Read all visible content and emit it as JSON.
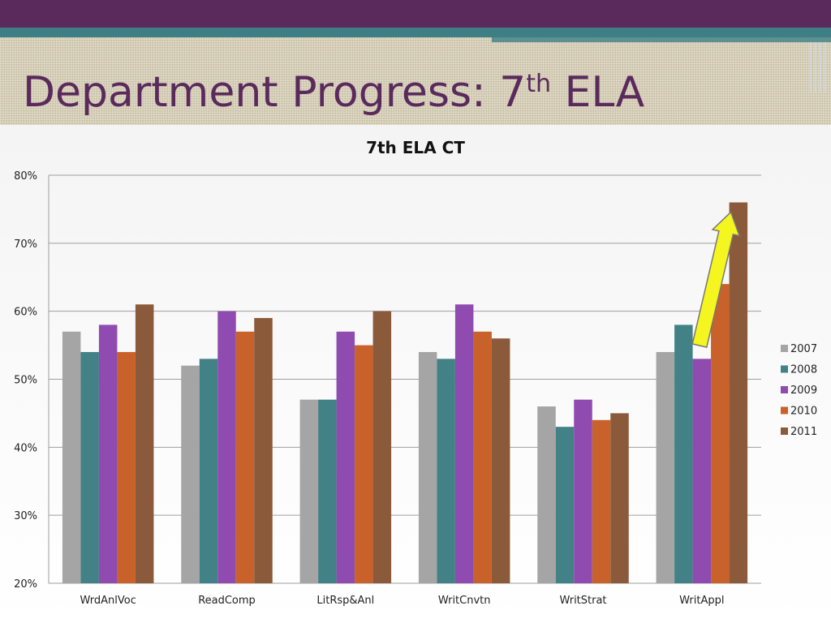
{
  "slide": {
    "title_main": "Department Progress: 7",
    "title_sup": "th",
    "title_end": " ELA",
    "colors": {
      "title": "#5a2a5c",
      "top_bar": "#5a2a5c",
      "accent_bar": "#3e7f86"
    }
  },
  "annotation": {
    "type": "yellow-arrow",
    "points_to": "WritAppl 2011",
    "color": "#f5f520"
  },
  "chart_data": {
    "type": "bar",
    "title": "7th ELA CT",
    "xlabel": "",
    "ylabel": "",
    "categories": [
      "WrdAnlVoc",
      "ReadComp",
      "LitRsp&Anl",
      "WritCnvtn",
      "WritStrat",
      "WritAppl"
    ],
    "series": [
      {
        "name": "2007",
        "color": "#a5a5a5",
        "values": [
          57,
          52,
          47,
          54,
          46,
          54
        ]
      },
      {
        "name": "2008",
        "color": "#428286",
        "values": [
          54,
          53,
          47,
          53,
          43,
          58
        ]
      },
      {
        "name": "2009",
        "color": "#8f4bb0",
        "values": [
          58,
          60,
          57,
          61,
          47,
          53
        ]
      },
      {
        "name": "2010",
        "color": "#c8622a",
        "values": [
          54,
          57,
          55,
          57,
          44,
          64
        ]
      },
      {
        "name": "2011",
        "color": "#8a5a3a",
        "values": [
          61,
          59,
          60,
          56,
          45,
          76
        ]
      }
    ],
    "ylim": [
      20,
      80
    ],
    "yticks": [
      20,
      30,
      40,
      50,
      60,
      70,
      80
    ],
    "ytick_labels": [
      "20%",
      "30%",
      "40%",
      "50%",
      "60%",
      "70%",
      "80%"
    ],
    "grid": true,
    "legend_position": "right"
  }
}
